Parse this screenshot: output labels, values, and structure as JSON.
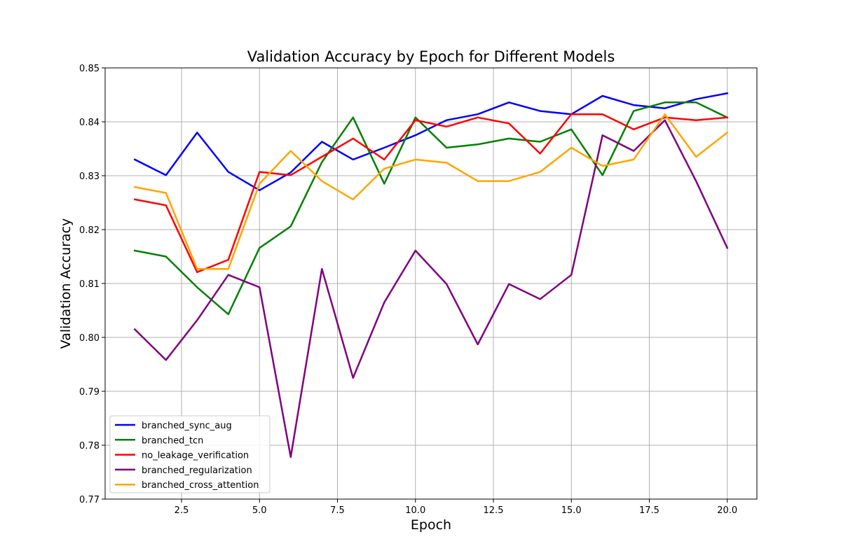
{
  "chart_data": {
    "type": "line",
    "title": "Validation Accuracy by Epoch for Different Models",
    "xlabel": "Epoch",
    "ylabel": "Validation Accuracy",
    "xlim": [
      0.05,
      20.95
    ],
    "ylim": [
      0.77,
      0.85
    ],
    "xticks": [
      2.5,
      5.0,
      7.5,
      10.0,
      12.5,
      15.0,
      17.5,
      20.0
    ],
    "xtick_labels": [
      "2.5",
      "5.0",
      "7.5",
      "10.0",
      "12.5",
      "15.0",
      "17.5",
      "20.0"
    ],
    "yticks": [
      0.77,
      0.78,
      0.79,
      0.8,
      0.81,
      0.82,
      0.83,
      0.84,
      0.85
    ],
    "ytick_labels": [
      "0.77",
      "0.78",
      "0.79",
      "0.80",
      "0.81",
      "0.82",
      "0.83",
      "0.84",
      "0.85"
    ],
    "grid": true,
    "legend_position": "lower-left",
    "x": [
      1,
      2,
      3,
      4,
      5,
      6,
      7,
      8,
      9,
      10,
      11,
      12,
      13,
      14,
      15,
      16,
      17,
      18,
      19,
      20
    ],
    "series": [
      {
        "name": "branched_sync_aug",
        "color": "#0000ff",
        "values": [
          0.833,
          0.8301,
          0.838,
          0.8307,
          0.8273,
          0.8306,
          0.8363,
          0.833,
          0.8352,
          0.8375,
          0.8403,
          0.8414,
          0.8436,
          0.842,
          0.8414,
          0.8448,
          0.8431,
          0.8425,
          0.8442,
          0.8453
        ]
      },
      {
        "name": "branched_tcn",
        "color": "#008000",
        "values": [
          0.8161,
          0.815,
          0.8093,
          0.8043,
          0.8166,
          0.8206,
          0.8325,
          0.8408,
          0.8285,
          0.8408,
          0.8352,
          0.8358,
          0.8369,
          0.8363,
          0.8386,
          0.8301,
          0.842,
          0.8436,
          0.8436,
          0.8408
        ]
      },
      {
        "name": "no_leakage_verification",
        "color": "#ff0000",
        "values": [
          0.8256,
          0.8245,
          0.8121,
          0.8144,
          0.8307,
          0.8301,
          0.8335,
          0.8369,
          0.833,
          0.8403,
          0.8391,
          0.8408,
          0.8397,
          0.8341,
          0.8414,
          0.8414,
          0.8386,
          0.8408,
          0.8403,
          0.8408
        ]
      },
      {
        "name": "branched_regularization",
        "color": "#800080",
        "values": [
          0.8015,
          0.7958,
          0.8032,
          0.8116,
          0.8093,
          0.7778,
          0.8127,
          0.7925,
          0.8065,
          0.8161,
          0.8099,
          0.7987,
          0.8099,
          0.8071,
          0.8116,
          0.8375,
          0.8346,
          0.8403,
          0.829,
          0.8166
        ]
      },
      {
        "name": "branched_cross_attention",
        "color": "#ffa500",
        "values": [
          0.8279,
          0.8268,
          0.8127,
          0.8127,
          0.8285,
          0.8346,
          0.829,
          0.8256,
          0.8313,
          0.833,
          0.8324,
          0.829,
          0.829,
          0.8307,
          0.8352,
          0.8318,
          0.833,
          0.8414,
          0.8335,
          0.838
        ]
      }
    ]
  }
}
